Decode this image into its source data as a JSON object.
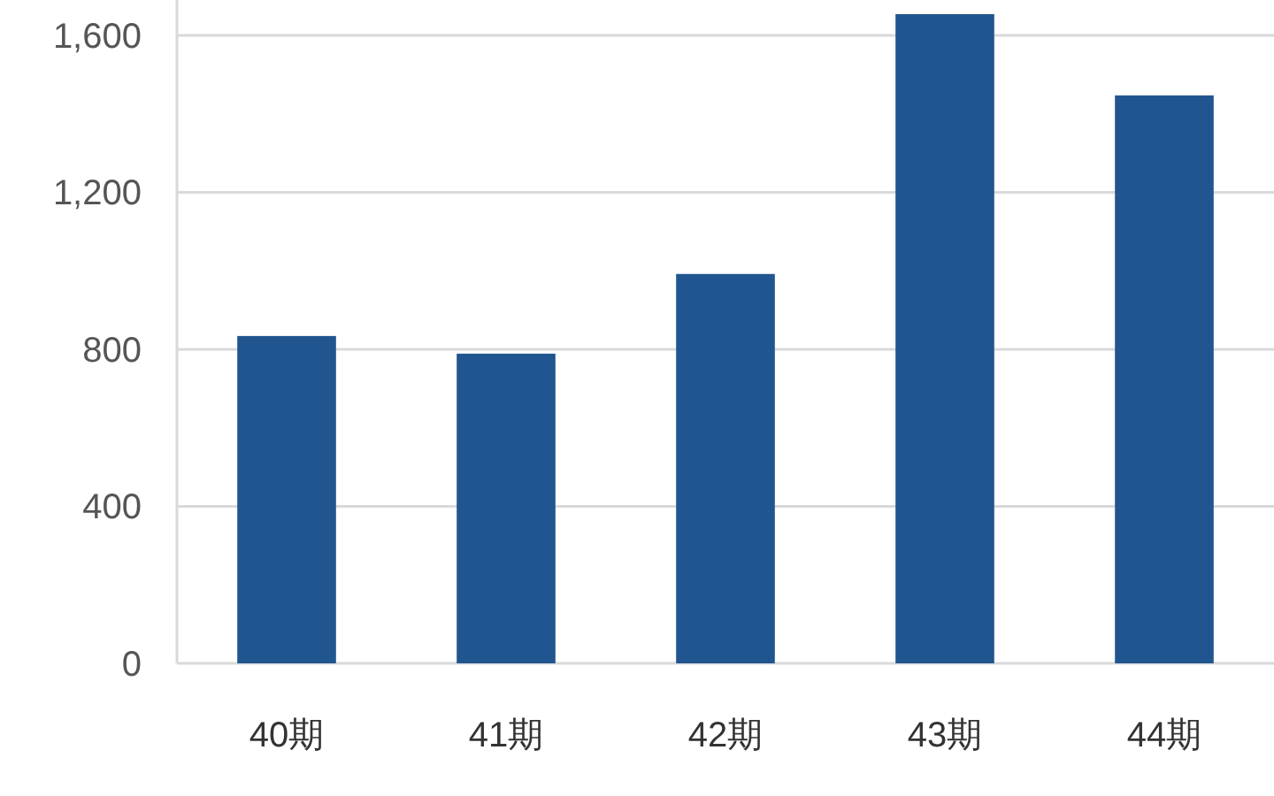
{
  "chart_data": {
    "type": "bar",
    "categories": [
      "40期",
      "41期",
      "42期",
      "43期",
      "44期"
    ],
    "values": [
      834,
      789,
      992,
      1654,
      1447
    ],
    "color": "#21558f",
    "ylim": [
      0,
      1690
    ],
    "yticks": [
      0,
      {
        "value": 400,
        "label": "400"
      },
      {
        "value": 800,
        "label": "800"
      },
      {
        "value": 1200,
        "label": "1,200"
      },
      {
        "value": 1600,
        "label": "1,600"
      }
    ],
    "grid": "y"
  }
}
